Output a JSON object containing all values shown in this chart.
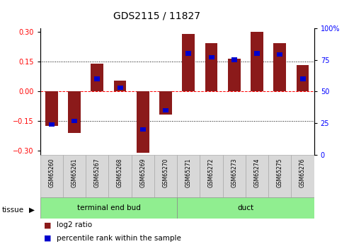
{
  "title": "GDS2115 / 11827",
  "samples": [
    "GSM65260",
    "GSM65261",
    "GSM65267",
    "GSM65268",
    "GSM65269",
    "GSM65270",
    "GSM65271",
    "GSM65272",
    "GSM65273",
    "GSM65274",
    "GSM65275",
    "GSM65276"
  ],
  "log2_ratio": [
    -0.175,
    -0.21,
    0.14,
    0.055,
    -0.31,
    -0.115,
    0.29,
    0.245,
    0.165,
    0.3,
    0.245,
    0.135
  ],
  "pct_rank": [
    24,
    27,
    60,
    53,
    20,
    35,
    80,
    77,
    75,
    80,
    79,
    60
  ],
  "groups": [
    {
      "label": "terminal end bud",
      "start": 0,
      "end": 6,
      "color": "#90ee90"
    },
    {
      "label": "duct",
      "start": 6,
      "end": 12,
      "color": "#90ee90"
    }
  ],
  "bar_color": "#8B1A1A",
  "pct_color": "#0000CD",
  "bar_width": 0.55,
  "ylim": [
    -0.32,
    0.32
  ],
  "yticks_left": [
    -0.3,
    -0.15,
    0.0,
    0.15,
    0.3
  ],
  "yticks_right": [
    0,
    25,
    50,
    75,
    100
  ],
  "hlines": [
    -0.15,
    0.0,
    0.15
  ],
  "hline_colors": [
    "black",
    "red",
    "black"
  ],
  "hline_styles": [
    "dotted",
    "dashed",
    "dotted"
  ],
  "tissue_label": "tissue",
  "legend_log2": "log2 ratio",
  "legend_pct": "percentile rank within the sample",
  "sample_box_color": "#d8d8d8",
  "title_fontsize": 10,
  "tick_fontsize": 7,
  "legend_fontsize": 7.5
}
